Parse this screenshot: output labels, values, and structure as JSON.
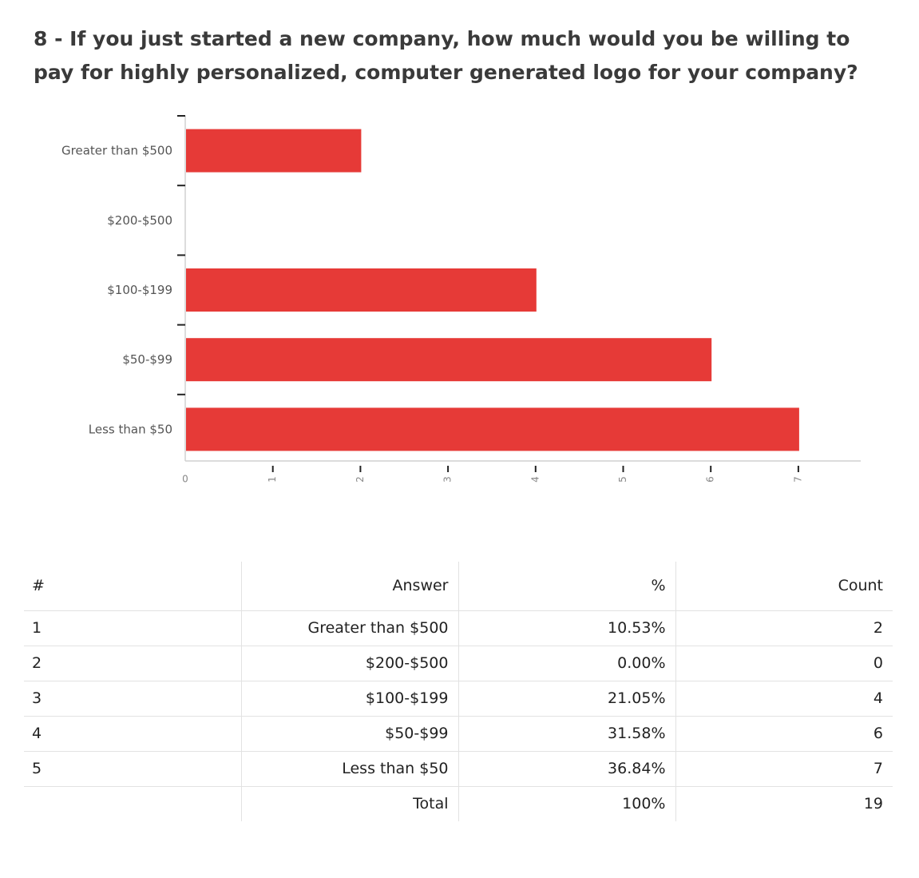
{
  "question": "8 - If you just started a new company, how much would you be willing to pay for highly personalized, computer generated logo for your company?",
  "chart_data": {
    "type": "bar",
    "orientation": "horizontal",
    "categories": [
      "Greater than $500",
      "$200-$500",
      "$100-$199",
      "$50-$99",
      "Less than $50"
    ],
    "values": [
      2,
      0,
      4,
      6,
      7
    ],
    "xlim": [
      0,
      7
    ],
    "xticks": [
      0,
      1,
      2,
      3,
      4,
      5,
      6,
      7
    ],
    "bar_color": "#e63a37",
    "grid": false
  },
  "table": {
    "headers": [
      "#",
      "Answer",
      "%",
      "Count"
    ],
    "rows": [
      [
        "1",
        "Greater than $500",
        "10.53%",
        "2"
      ],
      [
        "2",
        "$200-$500",
        "0.00%",
        "0"
      ],
      [
        "3",
        "$100-$199",
        "21.05%",
        "4"
      ],
      [
        "4",
        "$50-$99",
        "31.58%",
        "6"
      ],
      [
        "5",
        "Less than $50",
        "36.84%",
        "7"
      ]
    ],
    "total": [
      "",
      "Total",
      "100%",
      "19"
    ]
  }
}
